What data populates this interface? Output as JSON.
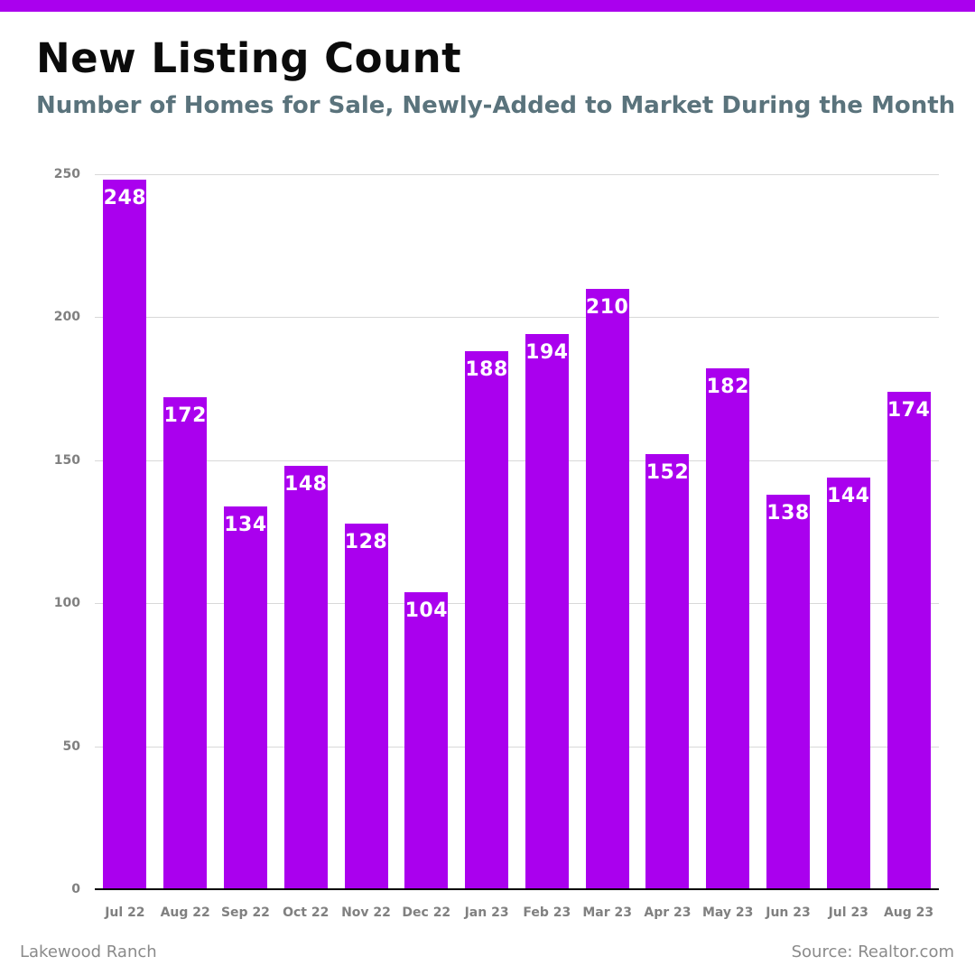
{
  "page": {
    "background_color": "#ffffff",
    "accent_color": "#aa00ee"
  },
  "header": {
    "title": "New Listing Count",
    "subtitle": "Number of Homes for Sale, Newly-Added to Market During the Month"
  },
  "footer": {
    "left_text": "Lakewood Ranch",
    "right_text": "Source: Realtor.com"
  },
  "chart_data": {
    "type": "bar",
    "title": "New Listing Count",
    "subtitle": "Number of Homes for Sale, Newly-Added to Market During the Month",
    "categories": [
      "Jul 22",
      "Aug 22",
      "Sep 22",
      "Oct 22",
      "Nov 22",
      "Dec 22",
      "Jan 23",
      "Feb 23",
      "Mar 23",
      "Apr 23",
      "May 23",
      "Jun 23",
      "Jul 23",
      "Aug 23"
    ],
    "values": [
      248,
      172,
      134,
      148,
      128,
      104,
      188,
      194,
      210,
      152,
      182,
      138,
      144,
      174
    ],
    "xlabel": "",
    "ylabel": "",
    "ylim": [
      0,
      250
    ],
    "yticks": [
      0,
      50,
      100,
      150,
      200,
      250
    ],
    "grid": true,
    "legend": "none",
    "bar_color": "#aa00ee",
    "value_label_color": "#ffffff",
    "gridline_color": "#d8d8d8",
    "axis_line_color": "#000000",
    "tick_label_color": "#808080"
  }
}
